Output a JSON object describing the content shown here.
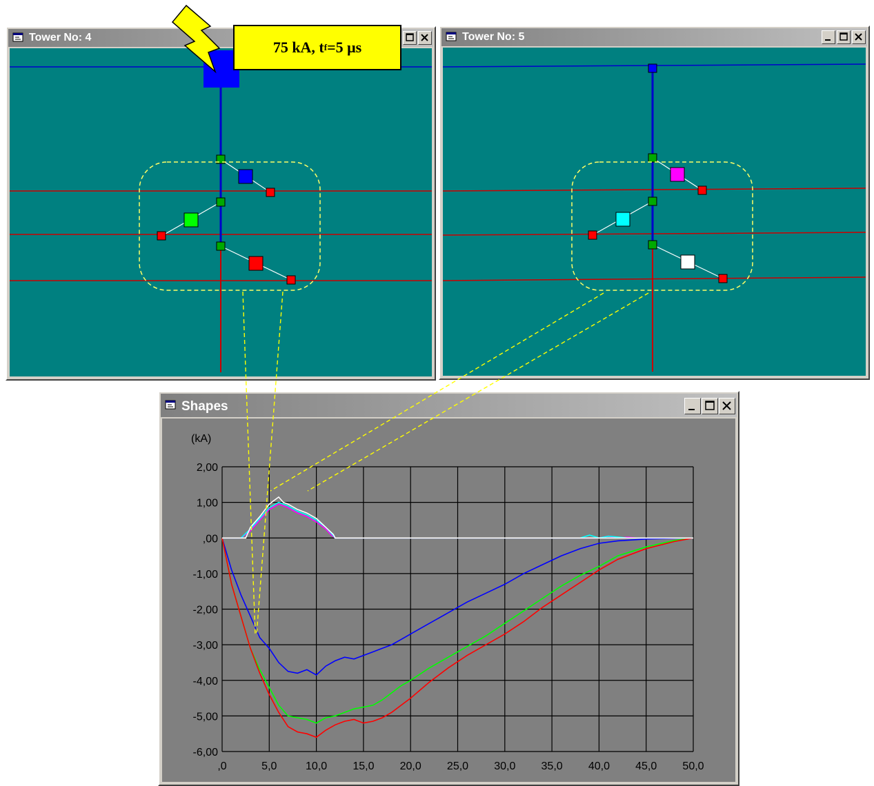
{
  "tower4": {
    "title": "Tower No:  4",
    "colors": {
      "background": "#008080",
      "wire": "#cc0000",
      "shield": "#0000cc",
      "ground_node": "#ff0000",
      "junction": "#00aa00",
      "boundary": "#ffff66"
    },
    "insulators": [
      {
        "phase": "upper",
        "marker_color": "#0000ff"
      },
      {
        "phase": "middle",
        "marker_color": "#00ff00"
      },
      {
        "phase": "lower",
        "marker_color": "#ff0000"
      }
    ]
  },
  "tower5": {
    "title": "Tower No:  5",
    "colors": {
      "background": "#008080",
      "wire": "#cc0000",
      "shield": "#0000cc"
    },
    "insulators": [
      {
        "phase": "upper",
        "marker_color": "#ff00ff"
      },
      {
        "phase": "middle",
        "marker_color": "#00ffff"
      },
      {
        "phase": "lower",
        "marker_color": "#ffffff"
      }
    ]
  },
  "callout": {
    "value": "75 kA, t",
    "subscript": "f",
    "tail": "=5 μs"
  },
  "strike_icon": "lightning-bolt-icon",
  "shapes": {
    "title": "Shapes"
  },
  "window_controls": {
    "minimize": "minimize-icon",
    "maximize": "maximize-icon",
    "close": "close-icon"
  },
  "chart_data": {
    "type": "line",
    "title": "",
    "xlabel": "",
    "ylabel": "(kA)",
    "xlim": [
      0,
      50
    ],
    "ylim": [
      -6,
      2
    ],
    "grid": true,
    "background": "#808080",
    "x_tick_labels": [
      ",0",
      "5,0",
      "10,0",
      "15,0",
      "20,0",
      "25,0",
      "30,0",
      "35,0",
      "40,0",
      "45,0",
      "50,0"
    ],
    "y_tick_labels": [
      "2,00",
      "1,00",
      ",00",
      "-1,00",
      "-2,00",
      "-3,00",
      "-4,00",
      "-5,00",
      "-6,00"
    ],
    "series": [
      {
        "color": "#0000ff",
        "x": [
          0,
          1,
          2,
          3,
          4,
          5,
          6,
          7,
          8,
          9,
          10,
          11,
          12,
          13,
          14,
          15,
          16,
          17,
          18,
          19,
          20,
          22,
          24,
          26,
          28,
          30,
          32,
          34,
          36,
          38,
          40,
          42,
          45,
          48,
          50
        ],
        "y": [
          0,
          -0.9,
          -1.6,
          -2.2,
          -2.8,
          -3.1,
          -3.5,
          -3.75,
          -3.8,
          -3.7,
          -3.85,
          -3.6,
          -3.45,
          -3.35,
          -3.4,
          -3.3,
          -3.2,
          -3.1,
          -3.0,
          -2.85,
          -2.7,
          -2.4,
          -2.1,
          -1.8,
          -1.55,
          -1.3,
          -1.0,
          -0.75,
          -0.5,
          -0.3,
          -0.15,
          -0.08,
          -0.03,
          -0.01,
          0
        ]
      },
      {
        "color": "#00ff00",
        "x": [
          0,
          1,
          2,
          3,
          4,
          5,
          6,
          7,
          8,
          9,
          10,
          11,
          12,
          13,
          14,
          15,
          16,
          17,
          18,
          19,
          20,
          22,
          24,
          26,
          28,
          30,
          32,
          34,
          36,
          38,
          40,
          42,
          45,
          48,
          50
        ],
        "y": [
          0,
          -1.3,
          -2.2,
          -3.1,
          -3.7,
          -4.2,
          -4.7,
          -5.0,
          -5.05,
          -5.1,
          -5.2,
          -5.05,
          -5.0,
          -4.9,
          -4.8,
          -4.75,
          -4.7,
          -4.55,
          -4.35,
          -4.15,
          -4.0,
          -3.65,
          -3.35,
          -3.05,
          -2.75,
          -2.4,
          -2.05,
          -1.7,
          -1.35,
          -1.05,
          -0.8,
          -0.5,
          -0.25,
          -0.07,
          0
        ]
      },
      {
        "color": "#ff0000",
        "x": [
          0,
          1,
          2,
          3,
          4,
          5,
          6,
          7,
          8,
          9,
          10,
          11,
          12,
          13,
          14,
          15,
          16,
          17,
          18,
          19,
          20,
          22,
          24,
          26,
          28,
          30,
          32,
          34,
          36,
          38,
          40,
          42,
          45,
          48,
          50
        ],
        "y": [
          0,
          -1.3,
          -2.2,
          -3.1,
          -3.8,
          -4.4,
          -4.9,
          -5.3,
          -5.45,
          -5.5,
          -5.6,
          -5.4,
          -5.25,
          -5.15,
          -5.1,
          -5.2,
          -5.15,
          -5.05,
          -4.9,
          -4.7,
          -4.5,
          -4.05,
          -3.65,
          -3.3,
          -3.0,
          -2.7,
          -2.35,
          -1.95,
          -1.6,
          -1.25,
          -0.9,
          -0.6,
          -0.3,
          -0.1,
          0
        ]
      },
      {
        "color": "#ff00ff",
        "x": [
          0,
          2,
          3,
          4,
          5,
          6,
          7,
          8,
          9,
          10,
          11,
          11.5,
          12,
          40,
          41,
          42,
          43,
          44,
          50
        ],
        "y": [
          0,
          0,
          0.2,
          0.5,
          0.8,
          0.95,
          0.85,
          0.7,
          0.6,
          0.45,
          0.25,
          0.1,
          0,
          0,
          0.05,
          0,
          0.02,
          0,
          0
        ]
      },
      {
        "color": "#00ffff",
        "x": [
          0,
          2,
          3,
          4,
          5,
          6,
          7,
          8,
          9,
          10,
          11,
          11.7,
          12,
          38,
          39,
          40,
          41,
          43,
          50
        ],
        "y": [
          0,
          0,
          0.25,
          0.55,
          0.85,
          1.0,
          0.9,
          0.75,
          0.65,
          0.5,
          0.3,
          0.1,
          0,
          0,
          0.08,
          0,
          0.05,
          0,
          0
        ]
      },
      {
        "color": "#ffffff",
        "x": [
          0,
          2.5,
          3,
          4,
          5,
          5.5,
          6,
          6.5,
          7,
          8,
          9,
          10,
          11,
          11.8,
          12,
          50
        ],
        "y": [
          0,
          0,
          0.3,
          0.6,
          0.95,
          1.05,
          1.15,
          1.0,
          0.95,
          0.8,
          0.7,
          0.55,
          0.3,
          0.1,
          0,
          0
        ]
      }
    ]
  }
}
